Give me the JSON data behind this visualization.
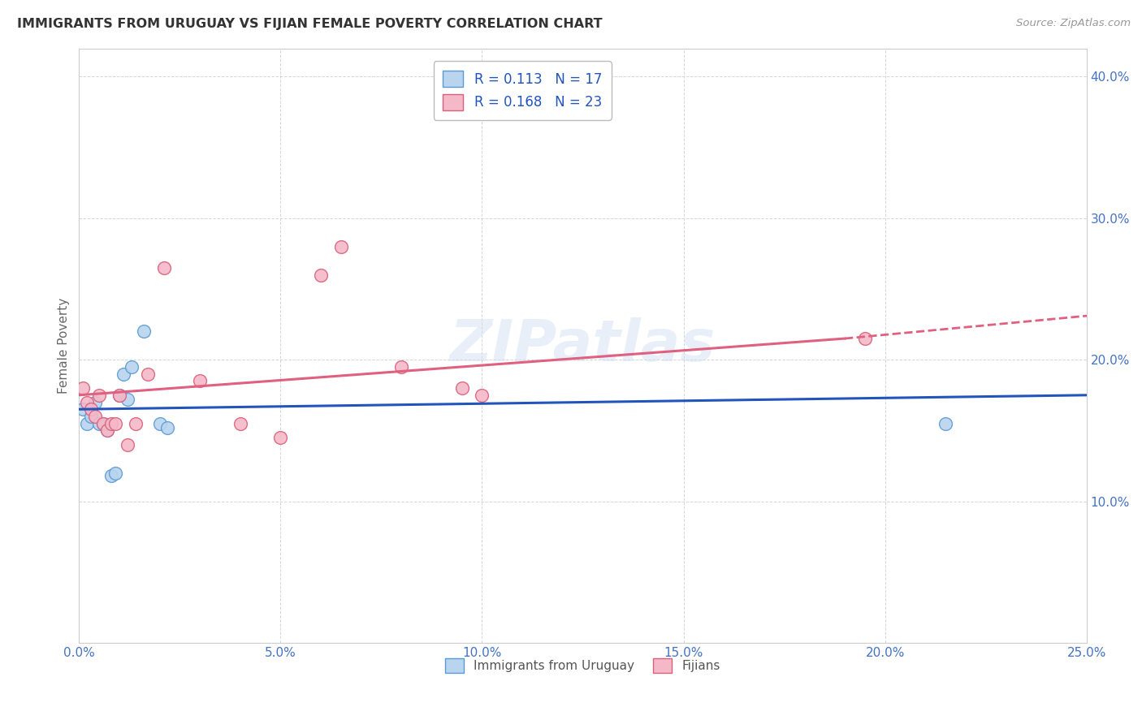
{
  "title": "IMMIGRANTS FROM URUGUAY VS FIJIAN FEMALE POVERTY CORRELATION CHART",
  "source": "Source: ZipAtlas.com",
  "ylabel": "Female Poverty",
  "watermark": "ZIPatlas",
  "xlim": [
    0.0,
    0.25
  ],
  "ylim": [
    0.0,
    0.42
  ],
  "xticks": [
    0.0,
    0.05,
    0.1,
    0.15,
    0.2,
    0.25
  ],
  "yticks": [
    0.0,
    0.1,
    0.2,
    0.3,
    0.4
  ],
  "xtick_labels": [
    "0.0%",
    "5.0%",
    "10.0%",
    "15.0%",
    "20.0%",
    "25.0%"
  ],
  "ytick_labels": [
    "",
    "10.0%",
    "20.0%",
    "30.0%",
    "40.0%"
  ],
  "series1_name": "Immigrants from Uruguay",
  "series1_color": "#b8d4ef",
  "series1_edge_color": "#5b9bd5",
  "series2_name": "Fijians",
  "series2_color": "#f4b8c8",
  "series2_edge_color": "#d9607a",
  "r1": "0.113",
  "n1": "17",
  "r2": "0.168",
  "n2": "23",
  "series1_x": [
    0.001,
    0.002,
    0.003,
    0.004,
    0.005,
    0.006,
    0.007,
    0.008,
    0.009,
    0.01,
    0.011,
    0.012,
    0.013,
    0.016,
    0.02,
    0.022,
    0.215
  ],
  "series1_y": [
    0.165,
    0.155,
    0.16,
    0.17,
    0.155,
    0.155,
    0.15,
    0.118,
    0.12,
    0.175,
    0.19,
    0.172,
    0.195,
    0.22,
    0.155,
    0.152,
    0.155
  ],
  "series2_x": [
    0.001,
    0.002,
    0.003,
    0.004,
    0.005,
    0.006,
    0.007,
    0.008,
    0.009,
    0.01,
    0.012,
    0.014,
    0.017,
    0.021,
    0.03,
    0.04,
    0.05,
    0.06,
    0.065,
    0.08,
    0.095,
    0.1,
    0.195
  ],
  "series2_y": [
    0.18,
    0.17,
    0.165,
    0.16,
    0.175,
    0.155,
    0.15,
    0.155,
    0.155,
    0.175,
    0.14,
    0.155,
    0.19,
    0.265,
    0.185,
    0.155,
    0.145,
    0.26,
    0.28,
    0.195,
    0.18,
    0.175,
    0.215
  ],
  "line1_color": "#2255bb",
  "line2_color": "#e06080",
  "background_color": "#ffffff",
  "grid_color": "#cccccc",
  "title_color": "#333333",
  "axis_color": "#4472c4",
  "marker_size": 130
}
